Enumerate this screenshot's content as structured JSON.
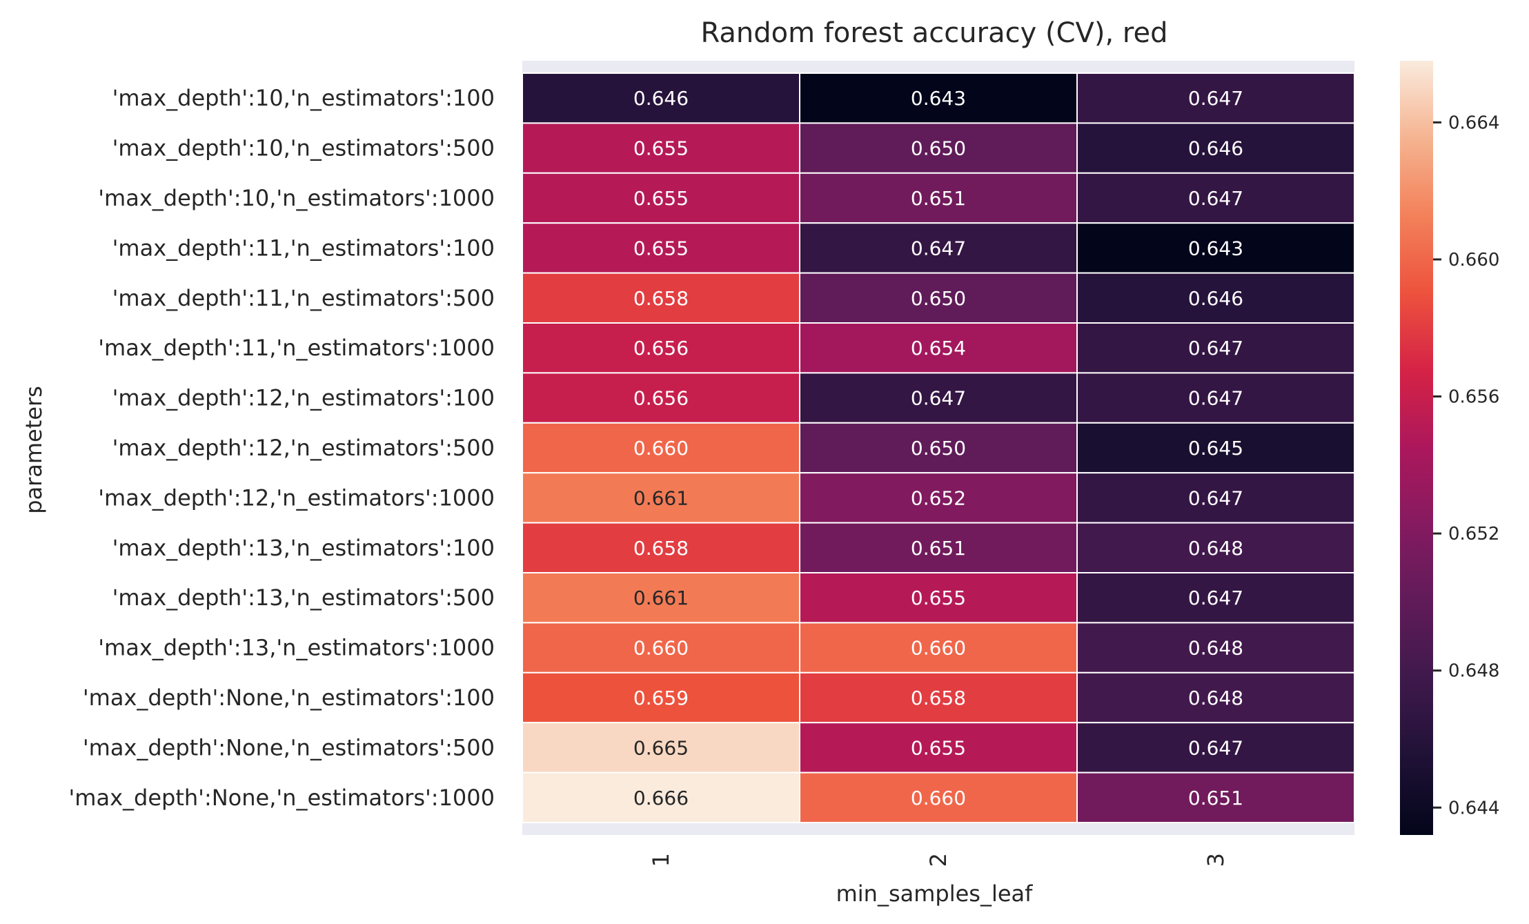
{
  "chart_data": {
    "type": "heatmap",
    "title": "Random forest accuracy (CV), red",
    "xlabel": "min_samples_leaf",
    "ylabel": "parameters",
    "x_categories": [
      "1",
      "2",
      "3"
    ],
    "y_categories": [
      "'max_depth':10,'n_estimators':100",
      "'max_depth':10,'n_estimators':500",
      "'max_depth':10,'n_estimators':1000",
      "'max_depth':11,'n_estimators':100",
      "'max_depth':11,'n_estimators':500",
      "'max_depth':11,'n_estimators':1000",
      "'max_depth':12,'n_estimators':100",
      "'max_depth':12,'n_estimators':500",
      "'max_depth':12,'n_estimators':1000",
      "'max_depth':13,'n_estimators':100",
      "'max_depth':13,'n_estimators':500",
      "'max_depth':13,'n_estimators':1000",
      "'max_depth':None,'n_estimators':100",
      "'max_depth':None,'n_estimators':500",
      "'max_depth':None,'n_estimators':1000"
    ],
    "values": [
      [
        0.646,
        0.643,
        0.647
      ],
      [
        0.655,
        0.65,
        0.646
      ],
      [
        0.655,
        0.651,
        0.647
      ],
      [
        0.655,
        0.647,
        0.643
      ],
      [
        0.658,
        0.65,
        0.646
      ],
      [
        0.656,
        0.654,
        0.647
      ],
      [
        0.656,
        0.647,
        0.647
      ],
      [
        0.66,
        0.65,
        0.645
      ],
      [
        0.661,
        0.652,
        0.647
      ],
      [
        0.658,
        0.651,
        0.648
      ],
      [
        0.661,
        0.655,
        0.647
      ],
      [
        0.66,
        0.66,
        0.648
      ],
      [
        0.659,
        0.658,
        0.648
      ],
      [
        0.665,
        0.655,
        0.647
      ],
      [
        0.666,
        0.66,
        0.651
      ]
    ],
    "value_format": "3 decimals",
    "colormap": "rocket",
    "color_range": [
      0.6432,
      0.6658
    ],
    "colorbar": {
      "ticks": [
        0.644,
        0.648,
        0.652,
        0.656,
        0.66,
        0.664
      ],
      "tick_labels": [
        "0.644",
        "0.648",
        "0.652",
        "0.656",
        "0.660",
        "0.664"
      ],
      "placement": "right"
    },
    "grid": false,
    "cell_gap_color": "#ffffff",
    "axes_background": "#eaeaf2",
    "text_color_dark": "#262626",
    "text_color_light": "#ffffff"
  }
}
